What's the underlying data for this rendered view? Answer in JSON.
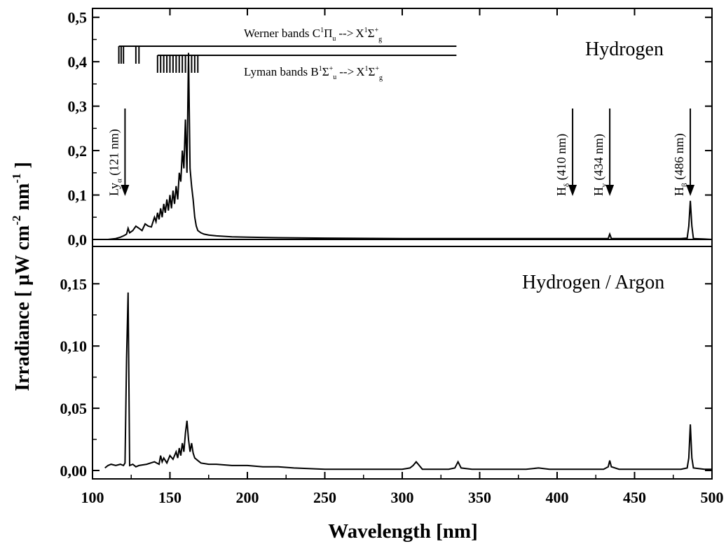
{
  "chart_data": [
    {
      "type": "line",
      "panel": "top",
      "label": "Hydrogen",
      "xlim": [
        100,
        500
      ],
      "ylim": [
        0.0,
        0.52
      ],
      "y_ticks": [
        0.0,
        0.1,
        0.2,
        0.3,
        0.4,
        0.5
      ],
      "y_tick_labels": [
        "0,0",
        "0,1",
        "0,2",
        "0,3",
        "0,4",
        "0,5"
      ],
      "series": [
        {
          "x": [
            108,
            110,
            115,
            118,
            120,
            121,
            122,
            123,
            124,
            126,
            128,
            130,
            132,
            134,
            136,
            138,
            140,
            141,
            142,
            143,
            144,
            145,
            146,
            147,
            148,
            149,
            150,
            151,
            152,
            153,
            154,
            155,
            156,
            157,
            158,
            159,
            160,
            161,
            162,
            163,
            164,
            165,
            166,
            167,
            168,
            170,
            172,
            175,
            180,
            190,
            200,
            220,
            250,
            300,
            350,
            400,
            430,
            433,
            434,
            435,
            438,
            450,
            480,
            484,
            485,
            486,
            487,
            488,
            495,
            500
          ],
          "y": [
            0.0,
            0.0,
            0.002,
            0.005,
            0.008,
            0.01,
            0.012,
            0.025,
            0.015,
            0.02,
            0.03,
            0.025,
            0.02,
            0.035,
            0.03,
            0.028,
            0.05,
            0.04,
            0.06,
            0.045,
            0.07,
            0.05,
            0.08,
            0.06,
            0.09,
            0.065,
            0.1,
            0.07,
            0.11,
            0.08,
            0.12,
            0.09,
            0.15,
            0.13,
            0.2,
            0.16,
            0.27,
            0.15,
            0.42,
            0.16,
            0.12,
            0.09,
            0.05,
            0.03,
            0.02,
            0.015,
            0.012,
            0.01,
            0.008,
            0.006,
            0.005,
            0.004,
            0.003,
            0.002,
            0.002,
            0.002,
            0.002,
            0.002,
            0.012,
            0.002,
            0.002,
            0.002,
            0.002,
            0.003,
            0.03,
            0.087,
            0.03,
            0.002,
            0.001,
            0.0
          ]
        }
      ],
      "annotations": {
        "werner": {
          "text": "Werner bands C",
          "sup1": "1",
          "greek1": "Π",
          "sub1": "u",
          "arrow": "-->",
          "x": "X",
          "sup2": "1",
          "greek2": "Σ",
          "sup3": "+",
          "sub2": "g"
        },
        "lyman": {
          "text": "Lyman bands B",
          "sup1": "1",
          "greek1": "Σ",
          "sup1b": "+",
          "sub1": "u",
          "arrow": "-->",
          "x": "X",
          "sup2": "1",
          "greek2": "Σ",
          "sup3": "+",
          "sub2": "g"
        },
        "werner_band_lines": [
          117,
          118.5,
          120,
          128,
          130
        ],
        "lyman_band_lines": [
          142,
          144,
          146,
          148,
          150,
          152,
          154,
          156,
          158,
          160,
          162,
          164,
          166,
          168
        ],
        "line_markers": [
          {
            "x": 121,
            "main": "Ly",
            "sub": "α",
            "text": " (121 nm)"
          },
          {
            "x": 410,
            "main": "H",
            "sub": "δ",
            "text": " (410 nm)"
          },
          {
            "x": 434,
            "main": "H",
            "sub": "γ",
            "text": " (434 nm)"
          },
          {
            "x": 486,
            "main": "H",
            "sub": "β",
            "text": " (486 nm)"
          }
        ]
      }
    },
    {
      "type": "line",
      "panel": "bottom",
      "label": "Hydrogen / Argon",
      "xlim": [
        100,
        500
      ],
      "ylim": [
        0.0,
        0.18
      ],
      "y_ticks": [
        0.0,
        0.05,
        0.1,
        0.15
      ],
      "y_tick_labels": [
        "0,00",
        "0,05",
        "0,10",
        "0,15"
      ],
      "series": [
        {
          "x": [
            108,
            110,
            112,
            115,
            118,
            120,
            121,
            122,
            123,
            124,
            126,
            128,
            130,
            135,
            140,
            143,
            144,
            145,
            146,
            148,
            150,
            152,
            154,
            155,
            156,
            157,
            158,
            159,
            160,
            161,
            162,
            163,
            164,
            165,
            166,
            168,
            170,
            175,
            180,
            190,
            200,
            210,
            220,
            230,
            250,
            280,
            300,
            305,
            307,
            309,
            311,
            313,
            320,
            330,
            334,
            336,
            338,
            345,
            380,
            388,
            395,
            420,
            430,
            433,
            434,
            435,
            440,
            480,
            484,
            485,
            486,
            487,
            488,
            495,
            500
          ],
          "y": [
            0.002,
            0.004,
            0.005,
            0.004,
            0.005,
            0.004,
            0.006,
            0.09,
            0.143,
            0.004,
            0.005,
            0.003,
            0.004,
            0.005,
            0.007,
            0.005,
            0.012,
            0.007,
            0.01,
            0.006,
            0.012,
            0.009,
            0.015,
            0.01,
            0.018,
            0.012,
            0.022,
            0.015,
            0.03,
            0.04,
            0.025,
            0.015,
            0.022,
            0.014,
            0.01,
            0.008,
            0.006,
            0.005,
            0.005,
            0.004,
            0.004,
            0.003,
            0.003,
            0.002,
            0.001,
            0.001,
            0.001,
            0.002,
            0.004,
            0.007,
            0.004,
            0.001,
            0.001,
            0.001,
            0.002,
            0.007,
            0.002,
            0.001,
            0.001,
            0.002,
            0.001,
            0.001,
            0.001,
            0.003,
            0.008,
            0.003,
            0.001,
            0.001,
            0.002,
            0.01,
            0.037,
            0.01,
            0.002,
            0.001,
            0.001
          ]
        }
      ]
    }
  ],
  "shared": {
    "x_ticks": [
      100,
      150,
      200,
      250,
      300,
      350,
      400,
      450,
      500
    ],
    "x_tick_labels": [
      "100",
      "150",
      "200",
      "250",
      "300",
      "350",
      "400",
      "450",
      "500"
    ],
    "xlabel": "Wavelength [nm]",
    "ylabel": "Irradiance [ μW cm",
    "ylabel_sup1": "-2",
    "ylabel_mid": " nm",
    "ylabel_sup2": "-1",
    "ylabel_end": " ]"
  },
  "colors": {
    "line": "#000000",
    "background": "#ffffff"
  }
}
